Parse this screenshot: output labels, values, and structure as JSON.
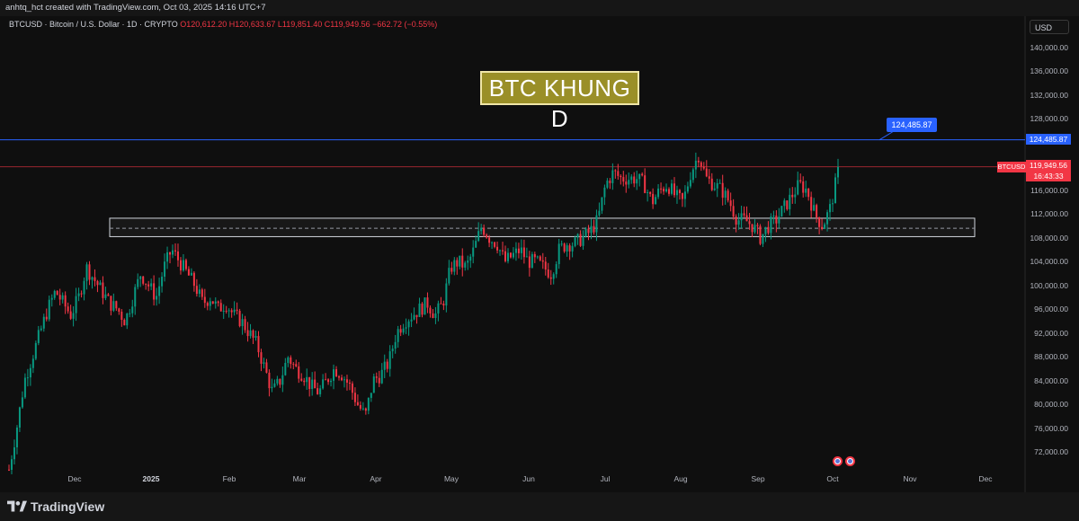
{
  "header": {
    "attribution": "anhtq_hct created with TradingView.com, Oct 03, 2025 14:16 UTC+7"
  },
  "legend": {
    "symbol_desc": "BTCUSD · Bitcoin / U.S. Dollar · 1D · CRYPTO",
    "open": "O120,612.20",
    "high": "H120,633.67",
    "low": "L119,851.40",
    "close": "C119,949.56",
    "change": "−662.72 (−0.55%)"
  },
  "annotation": {
    "title": "BTC KHUNG D"
  },
  "currency_button": "USD",
  "price_axis": {
    "labels": [
      "140,000.00",
      "136,000.00",
      "132,000.00",
      "128,000.00",
      "116,000.00",
      "112,000.00",
      "108,000.00",
      "104,000.00",
      "100,000.00",
      "96,000.00",
      "92,000.00",
      "88,000.00",
      "84,000.00",
      "80,000.00",
      "76,000.00",
      "72,000.00"
    ],
    "values": [
      140000,
      136000,
      132000,
      128000,
      116000,
      112000,
      108000,
      104000,
      100000,
      96000,
      92000,
      88000,
      84000,
      80000,
      76000,
      72000
    ]
  },
  "time_axis": {
    "labels": [
      "Dec",
      "2025",
      "Feb",
      "Mar",
      "Apr",
      "May",
      "Jun",
      "Jul",
      "Aug",
      "Sep",
      "Oct",
      "Nov",
      "Dec"
    ],
    "bold": [
      false,
      true,
      false,
      false,
      false,
      false,
      false,
      false,
      false,
      false,
      false,
      false,
      false
    ]
  },
  "tags": {
    "alert_line_label": "124,485.87",
    "alert_axis_label": "124,485.87",
    "symbol": "BTCUSD",
    "last_price": "119,949.56",
    "countdown": "16:43:33"
  },
  "colors": {
    "up": "#089981",
    "down": "#f23645",
    "alert_line": "#2962ff",
    "last_price_line": "#f23645",
    "zone_border": "#d1d4dc",
    "annotation_fill": "#9a8f28"
  },
  "footer": {
    "brand": "TradingView"
  },
  "chart_data": {
    "type": "candlestick",
    "symbol": "BTCUSD",
    "interval": "1D",
    "ylim": [
      70000,
      142000
    ],
    "x": [
      "2024-11",
      "2024-12",
      "2025-01",
      "2025-02",
      "2025-03",
      "2025-04",
      "2025-05",
      "2025-06",
      "2025-07",
      "2025-08",
      "2025-09",
      "2025-10"
    ],
    "close_path": [
      69000,
      76000,
      84000,
      88000,
      92000,
      96000,
      99000,
      97000,
      95000,
      98000,
      103000,
      101000,
      99000,
      97000,
      96000,
      94000,
      98000,
      102000,
      100000,
      98000,
      103000,
      106000,
      104000,
      102000,
      100000,
      97000,
      98000,
      96000,
      97000,
      95000,
      94000,
      92000,
      90000,
      86000,
      82000,
      84000,
      88000,
      86000,
      85000,
      83000,
      82000,
      84000,
      86000,
      85000,
      83000,
      80000,
      78000,
      84000,
      85000,
      87000,
      92000,
      94000,
      95000,
      96000,
      97000,
      95000,
      97000,
      103000,
      104000,
      103000,
      106000,
      110000,
      108000,
      107000,
      104000,
      105000,
      106000,
      104000,
      104000,
      103000,
      102000,
      106000,
      107000,
      107000,
      108000,
      109000,
      111000,
      117000,
      119000,
      118000,
      118000,
      118000,
      117000,
      114000,
      116000,
      117000,
      115000,
      114000,
      119000,
      122000,
      118000,
      117000,
      116000,
      114000,
      111000,
      111000,
      110000,
      108000,
      110000,
      111000,
      113000,
      115000,
      117000,
      116000,
      112000,
      110000,
      113000,
      119000
    ],
    "horizontal_lines": [
      {
        "label": "124,485.87",
        "value": 124485.87
      },
      {
        "label": "119,949.56",
        "value": 119949.56
      }
    ],
    "zone": {
      "low": 108200,
      "high": 111300,
      "mid": 109600
    }
  }
}
